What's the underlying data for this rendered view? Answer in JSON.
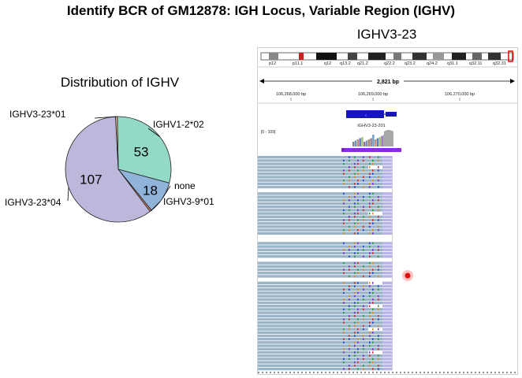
{
  "page": {
    "title": "Identify BCR of GM12878: IGH Locus, Variable Region (IGHV)"
  },
  "pie_panel": {
    "title": "Distribution of IGHV"
  },
  "chart_data": {
    "type": "pie",
    "title": "Distribution of IGHV",
    "slices": [
      {
        "label": "IGHV1-2*02",
        "value": 53,
        "display": "53",
        "color": "#93d9c7"
      },
      {
        "label": "none",
        "value": 18,
        "display": "18",
        "color": "#8fb3d9"
      },
      {
        "label": "IGHV3-9*01",
        "value": 1,
        "display": "",
        "color": "#d9826f"
      },
      {
        "label": "IGHV3-23*04",
        "value": 107,
        "display": "107",
        "color": "#bcb8dc"
      },
      {
        "label": "IGHV3-23*01",
        "value": 1,
        "display": "",
        "color": "#e6b98a"
      }
    ]
  },
  "igv": {
    "title": "IGHV3-23",
    "bands": [
      "p12",
      "p11.1",
      "q12",
      "q13.2",
      "q21.2",
      "q22.2",
      "q23.2",
      "q24.2",
      "q31.1",
      "q32.11",
      "q32.31"
    ],
    "span_label": "2,821 bp",
    "positions": [
      "106,268,000 bp",
      "106,269,000 bp",
      "106,270,000 bp"
    ],
    "gene_label": "IGHV3-23-201",
    "coverage_scale": "[0 - 109]"
  }
}
